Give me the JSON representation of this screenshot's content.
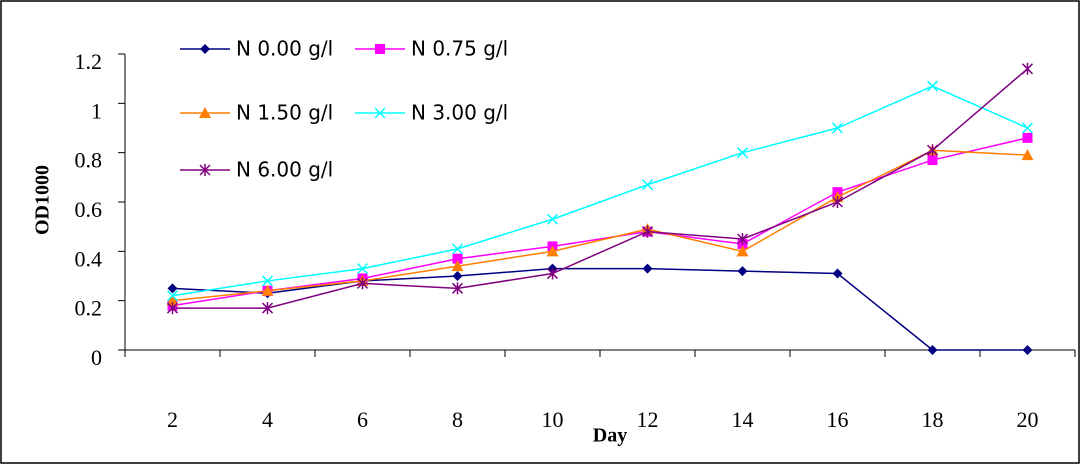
{
  "chart_data": {
    "type": "line",
    "x_label": "Day",
    "y_label": "OD1000",
    "categories": [
      "2",
      "4",
      "6",
      "8",
      "10",
      "12",
      "14",
      "16",
      "18",
      "20"
    ],
    "series": [
      {
        "name": "N 0.00 g/l",
        "color": "#000080",
        "marker": "diamond",
        "values": [
          0.25,
          0.23,
          0.28,
          0.3,
          0.33,
          0.33,
          0.32,
          0.31,
          0.0,
          0.0
        ]
      },
      {
        "name": "N 0.75 g/l",
        "color": "#ff00ff",
        "marker": "square",
        "values": [
          0.18,
          0.24,
          0.29,
          0.37,
          0.42,
          0.48,
          0.43,
          0.64,
          0.77,
          0.86
        ]
      },
      {
        "name": "N 1.50 g/l",
        "color": "#ff7f00",
        "marker": "triangle",
        "values": [
          0.2,
          0.24,
          0.28,
          0.34,
          0.4,
          0.49,
          0.4,
          0.62,
          0.81,
          0.79
        ]
      },
      {
        "name": "N 3.00 g/l",
        "color": "#00ffff",
        "marker": "x",
        "values": [
          0.22,
          0.28,
          0.33,
          0.41,
          0.53,
          0.67,
          0.8,
          0.9,
          1.07,
          0.9
        ]
      },
      {
        "name": "N 6.00 g/l",
        "color": "#800080",
        "marker": "star",
        "values": [
          0.17,
          0.17,
          0.27,
          0.25,
          0.31,
          0.48,
          0.45,
          0.6,
          0.81,
          1.14
        ]
      }
    ],
    "ylim": [
      0,
      1.2
    ],
    "yticks": [
      0,
      0.2,
      0.4,
      0.6,
      0.8,
      1,
      1.2
    ],
    "grid": false,
    "legend": "top-left"
  }
}
